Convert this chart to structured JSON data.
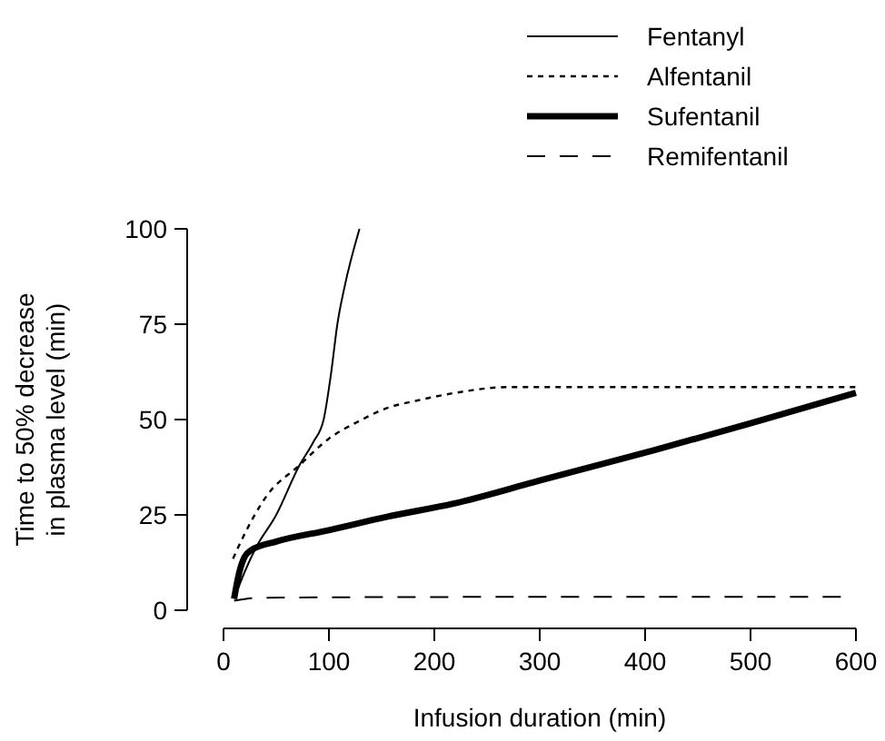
{
  "chart_data": {
    "type": "line",
    "xlabel": "Infusion duration (min)",
    "ylabel": "Time to 50% decrease\nin plasma level (min)",
    "xlim": [
      0,
      600
    ],
    "ylim": [
      0,
      100
    ],
    "xticks": [
      0,
      100,
      200,
      300,
      400,
      500,
      600
    ],
    "yticks": [
      0,
      25,
      50,
      75,
      100
    ],
    "grid": false,
    "legend": "top right",
    "series": [
      {
        "name": "Fentanyl",
        "color": "#000000",
        "line_style": "solid",
        "x": [
          10,
          20,
          30,
          50,
          72,
          85,
          95,
          102,
          108,
          115,
          129
        ],
        "values": [
          3,
          10,
          16,
          25,
          38,
          44,
          50,
          62,
          75,
          85,
          100
        ]
      },
      {
        "name": "Alfentanil",
        "color": "#000000",
        "line_style": "dotted",
        "x": [
          9,
          20,
          41,
          72,
          100,
          128,
          155,
          184,
          220,
          270,
          350,
          450,
          600
        ],
        "values": [
          13.5,
          20,
          30,
          38,
          45,
          49.5,
          53,
          55,
          57,
          58.5,
          58.5,
          58.5,
          58.5
        ]
      },
      {
        "name": "Sufentanil",
        "color": "#000000",
        "line_style": "solid",
        "x": [
          10,
          15,
          20,
          26,
          50,
          100,
          155,
          219,
          300,
          409,
          500,
          600
        ],
        "values": [
          3,
          10,
          14,
          15.7,
          18,
          21,
          24.5,
          28,
          34,
          42,
          49,
          57
        ]
      },
      {
        "name": "Remifentanil",
        "color": "#000000",
        "line_style": "dashed",
        "x": [
          10,
          30,
          100,
          300,
          590
        ],
        "values": [
          2.5,
          3.2,
          3.4,
          3.5,
          3.5
        ]
      }
    ]
  }
}
